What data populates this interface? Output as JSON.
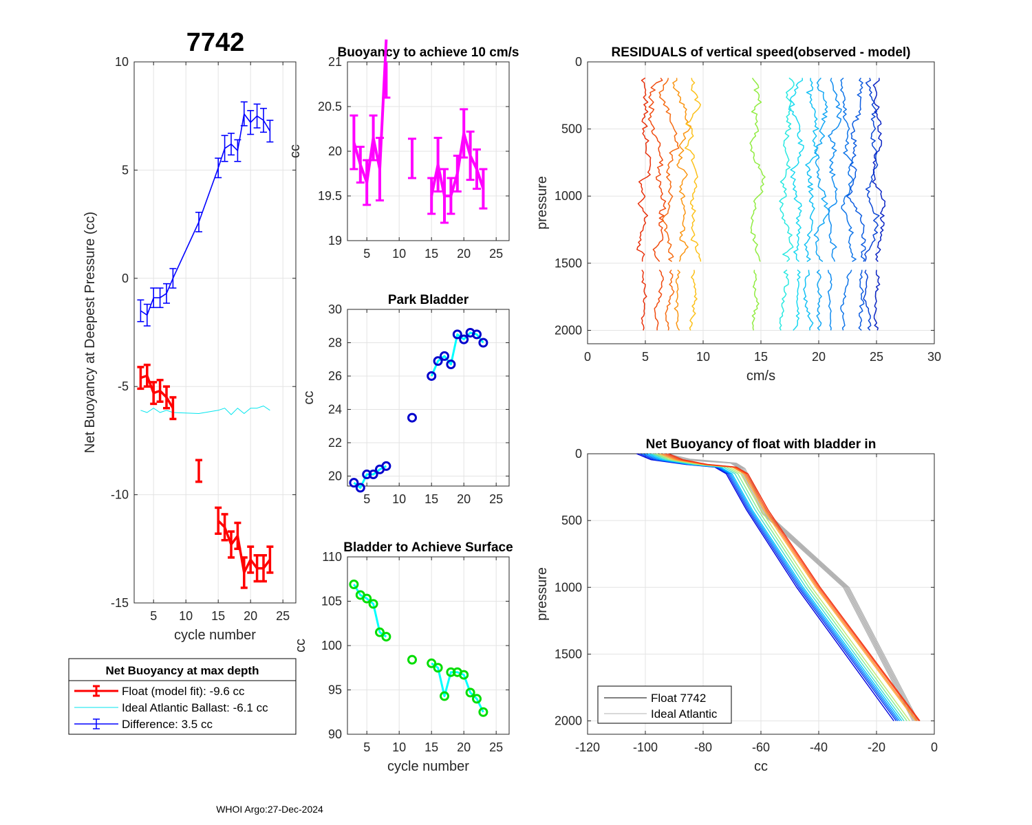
{
  "figure": {
    "main_title": "7742",
    "footer": "WHOI Argo:27-Dec-2024"
  },
  "chart_data": [
    {
      "id": "net_buoyancy",
      "type": "line",
      "title": "7742",
      "xlabel": "cycle number",
      "ylabel": "Net Buoyancy at Deepest Pressure (cc)",
      "xlim": [
        2,
        27
      ],
      "ylim": [
        -15,
        10
      ],
      "xticks": [
        5,
        10,
        15,
        20,
        25
      ],
      "yticks": [
        -15,
        -10,
        -5,
        0,
        5,
        10
      ],
      "grid": true,
      "series": [
        {
          "name": "Float",
          "color": "#ff0000",
          "x": [
            3,
            4,
            5,
            6,
            7,
            8
          ],
          "y": [
            -4.6,
            -4.5,
            -5.3,
            -5.2,
            -5.5,
            -6.0
          ],
          "err": [
            0.5,
            0.5,
            0.5,
            0.5,
            0.5,
            0.5
          ]
        },
        {
          "name": "Float-isolated",
          "color": "#ff0000",
          "x": [
            12,
            15,
            16,
            17,
            18,
            19,
            20,
            21,
            22,
            23
          ],
          "y": [
            -8.9,
            -11.2,
            -11.5,
            -12.3,
            -11.9,
            -13.6,
            -13.0,
            -13.4,
            -13.4,
            -13.0
          ],
          "err": [
            0.5,
            0.6,
            0.6,
            0.6,
            0.6,
            0.7,
            0.6,
            0.6,
            0.6,
            0.6
          ],
          "connect_from": 1
        },
        {
          "name": "Ideal Atlantic Ballast",
          "color": "#00e5ee",
          "x": [
            3,
            4,
            5,
            6,
            7,
            8,
            12,
            15,
            16,
            17,
            18,
            19,
            20,
            21,
            22,
            23
          ],
          "y": [
            -6.1,
            -6.2,
            -6.0,
            -6.2,
            -6.1,
            -6.2,
            -6.25,
            -6.1,
            -6.0,
            -6.3,
            -6.0,
            -6.25,
            -6.0,
            -6.0,
            -5.9,
            -6.1
          ]
        },
        {
          "name": "Difference",
          "color": "#0000ff",
          "x": [
            3,
            4,
            5,
            6,
            7,
            8,
            12,
            15,
            16,
            17,
            18,
            19,
            20,
            21,
            22,
            23
          ],
          "y": [
            -1.5,
            -1.7,
            -0.9,
            -0.9,
            -0.7,
            0.0,
            2.6,
            5.1,
            6.0,
            6.2,
            5.9,
            7.6,
            7.2,
            7.5,
            7.3,
            6.8
          ],
          "err": [
            0.5,
            0.5,
            0.45,
            0.45,
            0.45,
            0.45,
            0.45,
            0.45,
            0.6,
            0.5,
            0.5,
            0.55,
            0.55,
            0.55,
            0.55,
            0.5
          ]
        }
      ],
      "legend": {
        "title": "Net Buoyancy at max depth",
        "entries": [
          {
            "label": "Float (model fit):  -9.6 cc",
            "color": "#ff0000"
          },
          {
            "label": "Ideal Atlantic Ballast:  -6.1 cc",
            "color": "#00e5ee"
          },
          {
            "label": "Difference:   3.5 cc",
            "color": "#0000ff"
          }
        ],
        "placement": "below"
      }
    },
    {
      "id": "buoyancy_10cms",
      "type": "line",
      "title": "Buoyancy to achieve 10 cm/s",
      "xlabel": "",
      "ylabel": "cc",
      "xlim": [
        2,
        27
      ],
      "ylim": [
        19,
        21
      ],
      "xticks": [
        5,
        10,
        15,
        20,
        25
      ],
      "yticks": [
        19,
        19.5,
        20,
        20.5,
        21
      ],
      "ytick_labels": [
        "19",
        "19.5",
        "20",
        "20.5",
        "21"
      ],
      "grid": true,
      "color": "#ff00ff",
      "x": [
        3,
        4,
        5,
        6,
        7,
        8,
        12,
        15,
        16,
        17,
        18,
        19,
        20,
        21,
        22,
        23
      ],
      "y": [
        20.1,
        19.85,
        19.65,
        20.15,
        19.8,
        21.25,
        19.92,
        19.5,
        19.85,
        19.5,
        19.5,
        19.75,
        20.2,
        19.95,
        19.8,
        19.58
      ],
      "err": [
        0.3,
        0.2,
        0.25,
        0.25,
        0.35,
        0.65,
        0.22,
        0.2,
        0.3,
        0.3,
        0.2,
        0.2,
        0.27,
        0.27,
        0.22,
        0.22
      ],
      "breaks_after": [
        8,
        12
      ]
    },
    {
      "id": "park_bladder",
      "type": "line",
      "title": "Park Bladder",
      "xlabel": "",
      "ylabel": "cc",
      "xlim": [
        2,
        27
      ],
      "ylim": [
        19.4,
        30
      ],
      "xticks": [
        5,
        10,
        15,
        20,
        25
      ],
      "yticks": [
        20,
        22,
        24,
        26,
        28,
        30
      ],
      "grid": true,
      "line_color": "#00ffff",
      "marker_color": "#0000cc",
      "x": [
        3,
        4,
        5,
        6,
        7,
        8,
        12,
        15,
        16,
        17,
        18,
        19,
        20,
        21,
        22,
        23
      ],
      "y": [
        19.6,
        19.3,
        20.1,
        20.1,
        20.4,
        20.6,
        23.5,
        26.0,
        26.9,
        27.2,
        26.7,
        28.5,
        28.2,
        28.6,
        28.5,
        28.0
      ],
      "breaks_after": [
        8,
        12
      ]
    },
    {
      "id": "bladder_surface",
      "type": "line",
      "title": "Bladder to Achieve Surface",
      "xlabel": "cycle number",
      "ylabel": "cc",
      "xlim": [
        2,
        27
      ],
      "ylim": [
        90,
        110
      ],
      "xticks": [
        5,
        10,
        15,
        20,
        25
      ],
      "yticks": [
        90,
        95,
        100,
        105,
        110
      ],
      "grid": true,
      "line_color": "#00ffff",
      "marker_color": "#00dd00",
      "x": [
        3,
        4,
        5,
        6,
        7,
        8,
        12,
        15,
        16,
        17,
        18,
        19,
        20,
        21,
        22,
        23
      ],
      "y": [
        106.9,
        105.7,
        105.3,
        104.7,
        101.5,
        101.0,
        98.4,
        98.0,
        97.5,
        94.3,
        97.0,
        97.0,
        96.7,
        94.7,
        94.0,
        92.5
      ],
      "breaks_after": [
        8,
        12
      ]
    },
    {
      "id": "residuals",
      "type": "line",
      "title": "RESIDUALS of vertical speed(observed - model)",
      "xlabel": "cm/s",
      "ylabel": "pressure",
      "xlim": [
        0,
        30
      ],
      "ylim": [
        0,
        2100
      ],
      "y_reversed": true,
      "xticks": [
        0,
        5,
        10,
        15,
        20,
        25,
        30
      ],
      "yticks": [
        0,
        500,
        1000,
        1500,
        2000
      ],
      "grid": true,
      "gap_pressures": [
        1500,
        1550
      ],
      "profile_offsets": [
        4.8,
        6.0,
        7.0,
        8.2,
        9.2,
        14.5,
        17.2,
        18.2,
        19.2,
        20.2,
        21.3,
        22.3,
        23.5,
        24.5,
        25.2
      ],
      "profile_colors": [
        "#e8300a",
        "#f04a0e",
        "#f56a10",
        "#fa9410",
        "#fcc018",
        "#90ec40",
        "#28e8e0",
        "#18d8f0",
        "#12c0f4",
        "#12a6f4",
        "#108cf0",
        "#0e74e8",
        "#0c5ce0",
        "#0844d4",
        "#0a24c4"
      ]
    },
    {
      "id": "net_buoyancy_profile",
      "type": "line",
      "title": "Net Buoyancy of float with bladder in",
      "xlabel": "cc",
      "ylabel": "pressure",
      "xlim": [
        -120,
        0
      ],
      "ylim": [
        0,
        2100
      ],
      "y_reversed": true,
      "xticks": [
        -120,
        -100,
        -80,
        -60,
        -40,
        -20,
        0
      ],
      "yticks": [
        0,
        500,
        1000,
        1500,
        2000
      ],
      "grid": true,
      "profile_colors": [
        "#0000dd",
        "#0033ee",
        "#0066ff",
        "#0099ff",
        "#00c8ff",
        "#40e0d0",
        "#80ee90",
        "#c0e870",
        "#ffb040",
        "#ff8030",
        "#ff5020",
        "#ee3010"
      ],
      "bottom_x": [
        -14,
        -13.2,
        -12.6,
        -12.0,
        -11.3,
        -10.5,
        -9.5,
        -8.5,
        -6.5,
        -6.0,
        -5.4,
        -5.0
      ],
      "knee_x": [
        -72,
        -71.5,
        -71,
        -70.5,
        -70,
        -69,
        -68,
        -67,
        -66,
        -65.5,
        -65,
        -64.5
      ],
      "top_x": [
        -103,
        -102,
        -101,
        -100,
        -99,
        -98,
        -97,
        -96,
        -95,
        -94,
        -93,
        -92
      ],
      "ideal_color": "#b0b0b0",
      "legend": {
        "entries": [
          {
            "label": "Float 7742",
            "color": "#000000"
          },
          {
            "label": "Ideal Atlantic",
            "color": "#b0b0b0"
          }
        ],
        "placement": "bottom-left"
      }
    }
  ]
}
